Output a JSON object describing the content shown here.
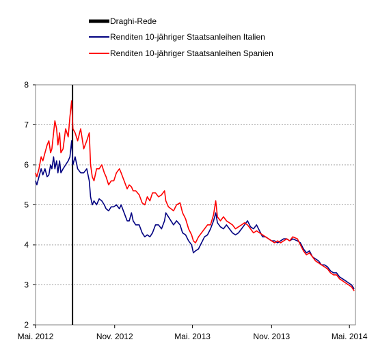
{
  "chart_data": {
    "type": "line",
    "title": "",
    "xlabel": "",
    "ylabel": "",
    "ylim": [
      2,
      8
    ],
    "yticks": [
      2,
      3,
      4,
      5,
      6,
      7,
      8
    ],
    "xlim": [
      "2012-05-01",
      "2014-05-15"
    ],
    "xticks": [
      {
        "date": "2012-05-01",
        "label": "Mai. 2012"
      },
      {
        "date": "2012-11-01",
        "label": "Nov. 2012"
      },
      {
        "date": "2013-05-01",
        "label": "Mai. 2013"
      },
      {
        "date": "2013-11-01",
        "label": "Nov. 2013"
      },
      {
        "date": "2014-05-01",
        "label": "Mai. 2014"
      }
    ],
    "grid": "horizontal dotted",
    "legend_position": "top-left",
    "event": {
      "name": "Draghi-Rede",
      "date": "2012-07-26",
      "color": "#000000"
    },
    "series": [
      {
        "name": "Renditen 10-jähriger Staatsanleihen Italien",
        "color": "#000080",
        "points": [
          [
            "2012-05-01",
            5.6
          ],
          [
            "2012-05-04",
            5.5
          ],
          [
            "2012-05-09",
            5.7
          ],
          [
            "2012-05-14",
            5.9
          ],
          [
            "2012-05-18",
            5.75
          ],
          [
            "2012-05-23",
            5.9
          ],
          [
            "2012-05-28",
            5.7
          ],
          [
            "2012-06-01",
            5.75
          ],
          [
            "2012-06-05",
            6.0
          ],
          [
            "2012-06-08",
            5.9
          ],
          [
            "2012-06-12",
            6.2
          ],
          [
            "2012-06-15",
            5.9
          ],
          [
            "2012-06-19",
            6.1
          ],
          [
            "2012-06-22",
            5.8
          ],
          [
            "2012-06-26",
            6.1
          ],
          [
            "2012-06-29",
            5.8
          ],
          [
            "2012-07-04",
            5.9
          ],
          [
            "2012-07-10",
            6.0
          ],
          [
            "2012-07-16",
            6.1
          ],
          [
            "2012-07-20",
            6.2
          ],
          [
            "2012-07-24",
            6.6
          ],
          [
            "2012-07-27",
            6.0
          ],
          [
            "2012-08-01",
            6.2
          ],
          [
            "2012-08-07",
            5.9
          ],
          [
            "2012-08-14",
            5.8
          ],
          [
            "2012-08-21",
            5.8
          ],
          [
            "2012-08-28",
            5.9
          ],
          [
            "2012-09-03",
            5.6
          ],
          [
            "2012-09-06",
            5.2
          ],
          [
            "2012-09-10",
            5.0
          ],
          [
            "2012-09-14",
            5.1
          ],
          [
            "2012-09-20",
            5.0
          ],
          [
            "2012-09-26",
            5.15
          ],
          [
            "2012-10-02",
            5.1
          ],
          [
            "2012-10-08",
            5.0
          ],
          [
            "2012-10-12",
            4.9
          ],
          [
            "2012-10-18",
            4.85
          ],
          [
            "2012-10-24",
            4.95
          ],
          [
            "2012-10-30",
            4.95
          ],
          [
            "2012-11-05",
            5.0
          ],
          [
            "2012-11-12",
            4.9
          ],
          [
            "2012-11-16",
            5.0
          ],
          [
            "2012-11-23",
            4.8
          ],
          [
            "2012-11-30",
            4.6
          ],
          [
            "2012-12-05",
            4.6
          ],
          [
            "2012-12-10",
            4.8
          ],
          [
            "2012-12-14",
            4.6
          ],
          [
            "2012-12-20",
            4.5
          ],
          [
            "2012-12-28",
            4.5
          ],
          [
            "2013-01-04",
            4.3
          ],
          [
            "2013-01-10",
            4.2
          ],
          [
            "2013-01-16",
            4.25
          ],
          [
            "2013-01-22",
            4.2
          ],
          [
            "2013-01-28",
            4.3
          ],
          [
            "2013-02-04",
            4.5
          ],
          [
            "2013-02-11",
            4.5
          ],
          [
            "2013-02-18",
            4.4
          ],
          [
            "2013-02-25",
            4.6
          ],
          [
            "2013-02-28",
            4.8
          ],
          [
            "2013-03-06",
            4.7
          ],
          [
            "2013-03-12",
            4.6
          ],
          [
            "2013-03-18",
            4.5
          ],
          [
            "2013-03-25",
            4.6
          ],
          [
            "2013-04-02",
            4.5
          ],
          [
            "2013-04-08",
            4.3
          ],
          [
            "2013-04-15",
            4.25
          ],
          [
            "2013-04-22",
            4.1
          ],
          [
            "2013-04-29",
            4.0
          ],
          [
            "2013-05-03",
            3.8
          ],
          [
            "2013-05-08",
            3.85
          ],
          [
            "2013-05-15",
            3.9
          ],
          [
            "2013-05-22",
            4.05
          ],
          [
            "2013-05-29",
            4.2
          ],
          [
            "2013-06-05",
            4.25
          ],
          [
            "2013-06-12",
            4.4
          ],
          [
            "2013-06-19",
            4.6
          ],
          [
            "2013-06-24",
            4.8
          ],
          [
            "2013-06-28",
            4.55
          ],
          [
            "2013-07-05",
            4.45
          ],
          [
            "2013-07-12",
            4.4
          ],
          [
            "2013-07-19",
            4.5
          ],
          [
            "2013-07-26",
            4.4
          ],
          [
            "2013-08-02",
            4.3
          ],
          [
            "2013-08-09",
            4.25
          ],
          [
            "2013-08-16",
            4.3
          ],
          [
            "2013-08-23",
            4.4
          ],
          [
            "2013-08-30",
            4.5
          ],
          [
            "2013-09-06",
            4.6
          ],
          [
            "2013-09-13",
            4.45
          ],
          [
            "2013-09-20",
            4.4
          ],
          [
            "2013-09-27",
            4.5
          ],
          [
            "2013-10-04",
            4.35
          ],
          [
            "2013-10-11",
            4.2
          ],
          [
            "2013-10-18",
            4.2
          ],
          [
            "2013-10-25",
            4.15
          ],
          [
            "2013-11-01",
            4.1
          ],
          [
            "2013-11-08",
            4.1
          ],
          [
            "2013-11-15",
            4.05
          ],
          [
            "2013-11-22",
            4.1
          ],
          [
            "2013-11-29",
            4.15
          ],
          [
            "2013-12-06",
            4.15
          ],
          [
            "2013-12-13",
            4.1
          ],
          [
            "2013-12-20",
            4.15
          ],
          [
            "2013-12-31",
            4.1
          ],
          [
            "2014-01-07",
            4.05
          ],
          [
            "2014-01-14",
            3.9
          ],
          [
            "2014-01-21",
            3.8
          ],
          [
            "2014-01-28",
            3.85
          ],
          [
            "2014-02-04",
            3.7
          ],
          [
            "2014-02-11",
            3.65
          ],
          [
            "2014-02-18",
            3.6
          ],
          [
            "2014-02-25",
            3.5
          ],
          [
            "2014-03-04",
            3.5
          ],
          [
            "2014-03-11",
            3.45
          ],
          [
            "2014-03-18",
            3.35
          ],
          [
            "2014-03-25",
            3.3
          ],
          [
            "2014-04-01",
            3.3
          ],
          [
            "2014-04-08",
            3.2
          ],
          [
            "2014-04-15",
            3.15
          ],
          [
            "2014-04-22",
            3.1
          ],
          [
            "2014-04-29",
            3.05
          ],
          [
            "2014-05-06",
            3.0
          ],
          [
            "2014-05-12",
            2.9
          ]
        ]
      },
      {
        "name": "Renditen 10-jähriger Staatsanleihen Spanien",
        "color": "#ff0000",
        "points": [
          [
            "2012-05-01",
            5.8
          ],
          [
            "2012-05-04",
            5.7
          ],
          [
            "2012-05-09",
            5.9
          ],
          [
            "2012-05-14",
            6.2
          ],
          [
            "2012-05-18",
            6.1
          ],
          [
            "2012-05-23",
            6.3
          ],
          [
            "2012-05-28",
            6.5
          ],
          [
            "2012-06-01",
            6.6
          ],
          [
            "2012-06-05",
            6.3
          ],
          [
            "2012-06-08",
            6.4
          ],
          [
            "2012-06-12",
            6.8
          ],
          [
            "2012-06-15",
            7.1
          ],
          [
            "2012-06-19",
            6.9
          ],
          [
            "2012-06-22",
            6.5
          ],
          [
            "2012-06-26",
            6.8
          ],
          [
            "2012-06-29",
            6.3
          ],
          [
            "2012-07-04",
            6.4
          ],
          [
            "2012-07-10",
            6.9
          ],
          [
            "2012-07-16",
            6.7
          ],
          [
            "2012-07-20",
            7.2
          ],
          [
            "2012-07-24",
            7.6
          ],
          [
            "2012-07-27",
            6.9
          ],
          [
            "2012-08-01",
            6.8
          ],
          [
            "2012-08-07",
            6.6
          ],
          [
            "2012-08-14",
            6.9
          ],
          [
            "2012-08-21",
            6.4
          ],
          [
            "2012-08-28",
            6.6
          ],
          [
            "2012-09-03",
            6.8
          ],
          [
            "2012-09-06",
            6.0
          ],
          [
            "2012-09-10",
            5.7
          ],
          [
            "2012-09-14",
            5.6
          ],
          [
            "2012-09-20",
            5.9
          ],
          [
            "2012-09-26",
            5.9
          ],
          [
            "2012-10-02",
            6.0
          ],
          [
            "2012-10-08",
            5.8
          ],
          [
            "2012-10-12",
            5.7
          ],
          [
            "2012-10-18",
            5.5
          ],
          [
            "2012-10-24",
            5.6
          ],
          [
            "2012-10-30",
            5.6
          ],
          [
            "2012-11-05",
            5.8
          ],
          [
            "2012-11-12",
            5.9
          ],
          [
            "2012-11-16",
            5.8
          ],
          [
            "2012-11-23",
            5.6
          ],
          [
            "2012-11-30",
            5.4
          ],
          [
            "2012-12-05",
            5.5
          ],
          [
            "2012-12-10",
            5.45
          ],
          [
            "2012-12-14",
            5.35
          ],
          [
            "2012-12-20",
            5.35
          ],
          [
            "2012-12-28",
            5.25
          ],
          [
            "2013-01-04",
            5.05
          ],
          [
            "2013-01-10",
            5.0
          ],
          [
            "2013-01-16",
            5.2
          ],
          [
            "2013-01-22",
            5.1
          ],
          [
            "2013-01-28",
            5.3
          ],
          [
            "2013-02-04",
            5.3
          ],
          [
            "2013-02-11",
            5.2
          ],
          [
            "2013-02-18",
            5.25
          ],
          [
            "2013-02-25",
            5.35
          ],
          [
            "2013-02-28",
            5.1
          ],
          [
            "2013-03-06",
            4.95
          ],
          [
            "2013-03-12",
            4.9
          ],
          [
            "2013-03-18",
            4.85
          ],
          [
            "2013-03-25",
            5.0
          ],
          [
            "2013-04-02",
            5.05
          ],
          [
            "2013-04-08",
            4.8
          ],
          [
            "2013-04-15",
            4.65
          ],
          [
            "2013-04-22",
            4.4
          ],
          [
            "2013-04-29",
            4.25
          ],
          [
            "2013-05-03",
            4.1
          ],
          [
            "2013-05-08",
            4.05
          ],
          [
            "2013-05-15",
            4.2
          ],
          [
            "2013-05-22",
            4.3
          ],
          [
            "2013-05-29",
            4.4
          ],
          [
            "2013-06-05",
            4.5
          ],
          [
            "2013-06-12",
            4.5
          ],
          [
            "2013-06-19",
            4.75
          ],
          [
            "2013-06-24",
            5.1
          ],
          [
            "2013-06-28",
            4.7
          ],
          [
            "2013-07-05",
            4.6
          ],
          [
            "2013-07-12",
            4.7
          ],
          [
            "2013-07-19",
            4.6
          ],
          [
            "2013-07-26",
            4.55
          ],
          [
            "2013-08-02",
            4.5
          ],
          [
            "2013-08-09",
            4.4
          ],
          [
            "2013-08-16",
            4.45
          ],
          [
            "2013-08-23",
            4.5
          ],
          [
            "2013-08-30",
            4.55
          ],
          [
            "2013-09-06",
            4.5
          ],
          [
            "2013-09-13",
            4.4
          ],
          [
            "2013-09-20",
            4.3
          ],
          [
            "2013-09-27",
            4.35
          ],
          [
            "2013-10-04",
            4.3
          ],
          [
            "2013-10-11",
            4.25
          ],
          [
            "2013-10-18",
            4.2
          ],
          [
            "2013-10-25",
            4.15
          ],
          [
            "2013-11-01",
            4.1
          ],
          [
            "2013-11-08",
            4.05
          ],
          [
            "2013-11-15",
            4.1
          ],
          [
            "2013-11-22",
            4.05
          ],
          [
            "2013-11-29",
            4.1
          ],
          [
            "2013-12-06",
            4.15
          ],
          [
            "2013-12-13",
            4.1
          ],
          [
            "2013-12-20",
            4.2
          ],
          [
            "2013-12-31",
            4.15
          ],
          [
            "2014-01-07",
            4.0
          ],
          [
            "2014-01-14",
            3.85
          ],
          [
            "2014-01-21",
            3.75
          ],
          [
            "2014-01-28",
            3.8
          ],
          [
            "2014-02-04",
            3.7
          ],
          [
            "2014-02-11",
            3.6
          ],
          [
            "2014-02-18",
            3.55
          ],
          [
            "2014-02-25",
            3.5
          ],
          [
            "2014-03-04",
            3.45
          ],
          [
            "2014-03-11",
            3.4
          ],
          [
            "2014-03-18",
            3.3
          ],
          [
            "2014-03-25",
            3.25
          ],
          [
            "2014-04-01",
            3.25
          ],
          [
            "2014-04-08",
            3.15
          ],
          [
            "2014-04-15",
            3.1
          ],
          [
            "2014-04-22",
            3.05
          ],
          [
            "2014-04-29",
            3.0
          ],
          [
            "2014-05-06",
            2.95
          ],
          [
            "2014-05-12",
            2.85
          ]
        ]
      }
    ]
  }
}
